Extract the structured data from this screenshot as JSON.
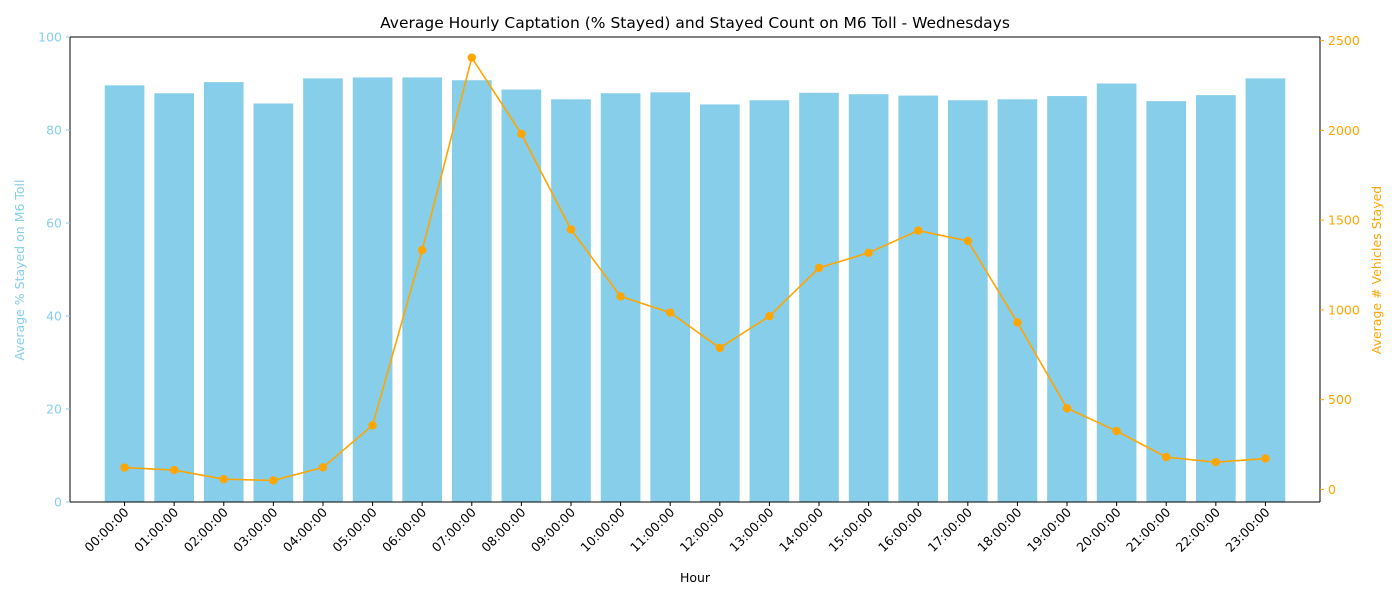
{
  "chart_data": {
    "type": "bar",
    "title": "Average Hourly Captation (% Stayed) and Stayed Count on M6 Toll - Wednesdays",
    "xlabel": "Hour",
    "ylabel_left": "Average % Stayed on M6 Toll",
    "ylabel_right": "Average # Vehicles Stayed",
    "ylim_left": [
      0,
      100
    ],
    "ylim_right": [
      -70,
      2520
    ],
    "yticks_left": [
      0,
      20,
      40,
      60,
      80,
      100
    ],
    "yticks_right": [
      0,
      500,
      1000,
      1500,
      2000,
      2500
    ],
    "grid": false,
    "colors": {
      "bars": "#87ceeb",
      "line": "#ffa500",
      "axis": "#000000"
    },
    "categories": [
      "00:00:00",
      "01:00:00",
      "02:00:00",
      "03:00:00",
      "04:00:00",
      "05:00:00",
      "06:00:00",
      "07:00:00",
      "08:00:00",
      "09:00:00",
      "10:00:00",
      "11:00:00",
      "12:00:00",
      "13:00:00",
      "14:00:00",
      "15:00:00",
      "16:00:00",
      "17:00:00",
      "18:00:00",
      "19:00:00",
      "20:00:00",
      "21:00:00",
      "22:00:00",
      "23:00:00"
    ],
    "series": [
      {
        "type": "bar",
        "axis": "left",
        "values": [
          89.6,
          87.9,
          90.3,
          85.7,
          91.1,
          91.3,
          91.3,
          90.7,
          88.7,
          86.6,
          87.9,
          88.1,
          85.5,
          86.4,
          88.0,
          87.7,
          87.4,
          86.4,
          86.6,
          87.3,
          90.0,
          86.2,
          87.5,
          91.1
        ]
      },
      {
        "type": "line",
        "axis": "right",
        "values": [
          122,
          108,
          57,
          50,
          123,
          357,
          1333,
          2405,
          1980,
          1448,
          1075,
          985,
          788,
          965,
          1234,
          1318,
          1442,
          1384,
          930,
          452,
          325,
          180,
          152,
          172
        ]
      }
    ]
  }
}
